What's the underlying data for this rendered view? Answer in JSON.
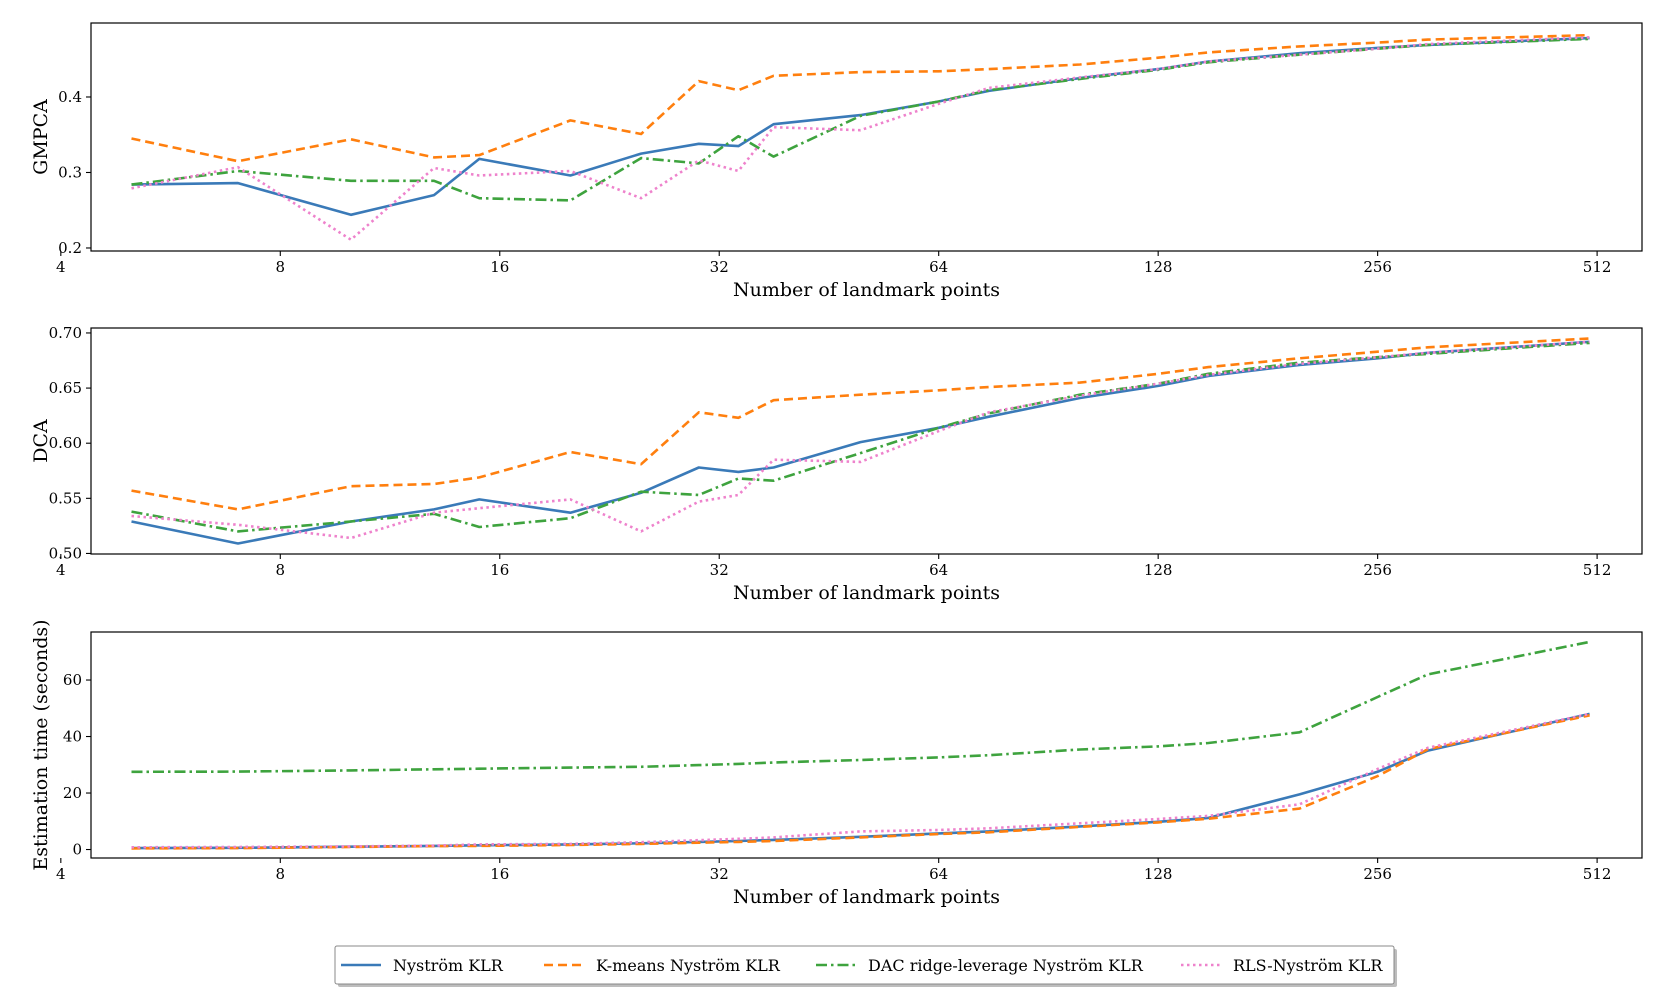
{
  "chart_data": [
    {
      "type": "line",
      "title": "",
      "xlabel": "Number of landmark points",
      "ylabel": "GMPCA",
      "xscale": "log2",
      "xlim": [
        4.4,
        590
      ],
      "ylim": [
        0.196,
        0.498
      ],
      "xticks": [
        4,
        8,
        16,
        32,
        64,
        128,
        256,
        512
      ],
      "xtick_labels": [
        "4",
        "8",
        "16",
        "32",
        "64",
        "128",
        "256",
        "512"
      ],
      "yticks": [
        0.2,
        0.3,
        0.4
      ],
      "ytick_labels": [
        "0.2",
        "0.3",
        "0.4"
      ],
      "x": [
        5,
        7,
        10,
        13,
        15,
        20,
        25,
        30,
        34,
        38,
        50,
        64,
        75,
        100,
        128,
        150,
        200,
        256,
        300,
        500
      ],
      "series": [
        {
          "name": "Nyström KLR",
          "values": [
            0.284,
            0.286,
            0.244,
            0.27,
            0.318,
            0.296,
            0.325,
            0.338,
            0.335,
            0.364,
            0.376,
            0.394,
            0.408,
            0.425,
            0.437,
            0.447,
            0.458,
            0.465,
            0.469,
            0.478
          ]
        },
        {
          "name": "K-means Nyström KLR",
          "values": [
            0.345,
            0.315,
            0.344,
            0.32,
            0.323,
            0.369,
            0.351,
            0.421,
            0.409,
            0.428,
            0.433,
            0.434,
            0.437,
            0.443,
            0.452,
            0.459,
            0.467,
            0.472,
            0.476,
            0.482
          ]
        },
        {
          "name": "DAC ridge-leverage Nyström KLR",
          "values": [
            0.284,
            0.302,
            0.289,
            0.289,
            0.266,
            0.263,
            0.319,
            0.312,
            0.348,
            0.321,
            0.375,
            0.394,
            0.409,
            0.424,
            0.436,
            0.446,
            0.456,
            0.464,
            0.469,
            0.477
          ]
        },
        {
          "name": "RLS-Nyström KLR",
          "values": [
            0.279,
            0.307,
            0.211,
            0.306,
            0.296,
            0.302,
            0.266,
            0.316,
            0.302,
            0.36,
            0.356,
            0.391,
            0.412,
            0.426,
            0.437,
            0.447,
            0.456,
            0.464,
            0.47,
            0.479
          ]
        }
      ]
    },
    {
      "type": "line",
      "title": "",
      "xlabel": "Number of landmark points",
      "ylabel": "DCA",
      "xscale": "log2",
      "xlim": [
        4.4,
        590
      ],
      "ylim": [
        0.4995,
        0.7045
      ],
      "xticks": [
        4,
        8,
        16,
        32,
        64,
        128,
        256,
        512
      ],
      "xtick_labels": [
        "4",
        "8",
        "16",
        "32",
        "64",
        "128",
        "256",
        "512"
      ],
      "yticks": [
        0.5,
        0.55,
        0.6,
        0.65,
        0.7
      ],
      "ytick_labels": [
        "0.50",
        "0.55",
        "0.60",
        "0.65",
        "0.70"
      ],
      "x": [
        5,
        7,
        10,
        13,
        15,
        20,
        25,
        30,
        34,
        38,
        50,
        64,
        75,
        100,
        128,
        150,
        200,
        256,
        300,
        500
      ],
      "series": [
        {
          "name": "Nyström KLR",
          "values": [
            0.529,
            0.509,
            0.529,
            0.54,
            0.549,
            0.537,
            0.555,
            0.578,
            0.574,
            0.578,
            0.601,
            0.614,
            0.624,
            0.641,
            0.652,
            0.661,
            0.671,
            0.677,
            0.682,
            0.692
          ]
        },
        {
          "name": "K-means Nyström KLR",
          "values": [
            0.557,
            0.54,
            0.561,
            0.563,
            0.569,
            0.592,
            0.581,
            0.628,
            0.623,
            0.639,
            0.644,
            0.648,
            0.651,
            0.655,
            0.663,
            0.669,
            0.677,
            0.683,
            0.687,
            0.695
          ]
        },
        {
          "name": "DAC ridge-leverage Nyström KLR",
          "values": [
            0.538,
            0.52,
            0.529,
            0.536,
            0.524,
            0.532,
            0.556,
            0.553,
            0.568,
            0.566,
            0.591,
            0.614,
            0.627,
            0.644,
            0.654,
            0.663,
            0.673,
            0.678,
            0.681,
            0.691
          ]
        },
        {
          "name": "RLS-Nyström KLR",
          "values": [
            0.534,
            0.526,
            0.514,
            0.537,
            0.541,
            0.549,
            0.52,
            0.547,
            0.553,
            0.585,
            0.583,
            0.611,
            0.628,
            0.643,
            0.654,
            0.662,
            0.672,
            0.678,
            0.682,
            0.692
          ]
        }
      ]
    },
    {
      "type": "line",
      "title": "",
      "xlabel": "Number of landmark points",
      "ylabel": "Estimation time (seconds)",
      "xscale": "log2",
      "xlim": [
        4.4,
        590
      ],
      "ylim": [
        -3,
        77
      ],
      "xticks": [
        4,
        8,
        16,
        32,
        64,
        128,
        256,
        512
      ],
      "xtick_labels": [
        "4",
        "8",
        "16",
        "32",
        "64",
        "128",
        "256",
        "512"
      ],
      "yticks": [
        0,
        20,
        40,
        60
      ],
      "ytick_labels": [
        "0",
        "20",
        "40",
        "60"
      ],
      "x": [
        5,
        7,
        10,
        13,
        15,
        20,
        25,
        30,
        34,
        38,
        50,
        64,
        75,
        100,
        128,
        150,
        200,
        256,
        300,
        500
      ],
      "series": [
        {
          "name": "Nyström KLR",
          "values": [
            0.5,
            0.6,
            1.0,
            1.3,
            1.5,
            1.8,
            2.2,
            2.7,
            3.0,
            3.4,
            4.5,
            5.7,
            6.4,
            8.2,
            9.8,
            11.2,
            19.5,
            27.5,
            35.0,
            48.0
          ]
        },
        {
          "name": "K-means Nyström KLR",
          "values": [
            0.4,
            0.5,
            0.9,
            1.2,
            1.3,
            1.6,
            2.0,
            2.4,
            2.7,
            3.0,
            4.3,
            5.5,
            6.1,
            8.0,
            9.6,
            10.9,
            14.5,
            26.0,
            35.5,
            47.5
          ]
        },
        {
          "name": "DAC ridge-leverage Nyström KLR",
          "values": [
            27.5,
            27.6,
            28.0,
            28.4,
            28.6,
            29.0,
            29.3,
            29.9,
            30.3,
            30.8,
            31.7,
            32.6,
            33.4,
            35.4,
            36.5,
            37.7,
            41.5,
            54.0,
            62.0,
            73.5
          ]
        },
        {
          "name": "RLS-Nyström KLR",
          "values": [
            0.8,
            0.9,
            1.1,
            1.4,
            1.8,
            2.0,
            2.6,
            3.3,
            3.8,
            4.3,
            6.4,
            6.9,
            7.5,
            9.3,
            10.8,
            11.9,
            16.0,
            28.5,
            36.0,
            48.0
          ]
        }
      ]
    }
  ],
  "legend": {
    "placement": "bottom-center",
    "entries": [
      {
        "label": "Nyström KLR",
        "color": "#3a7ab8",
        "style": "solid"
      },
      {
        "label": "K-means Nyström KLR",
        "color": "#ff7f0e",
        "style": "dashed"
      },
      {
        "label": "DAC ridge-leverage Nyström KLR",
        "color": "#3ea33e",
        "style": "dashdot"
      },
      {
        "label": "RLS-Nyström KLR",
        "color": "#ee82cc",
        "style": "dotted"
      }
    ]
  }
}
